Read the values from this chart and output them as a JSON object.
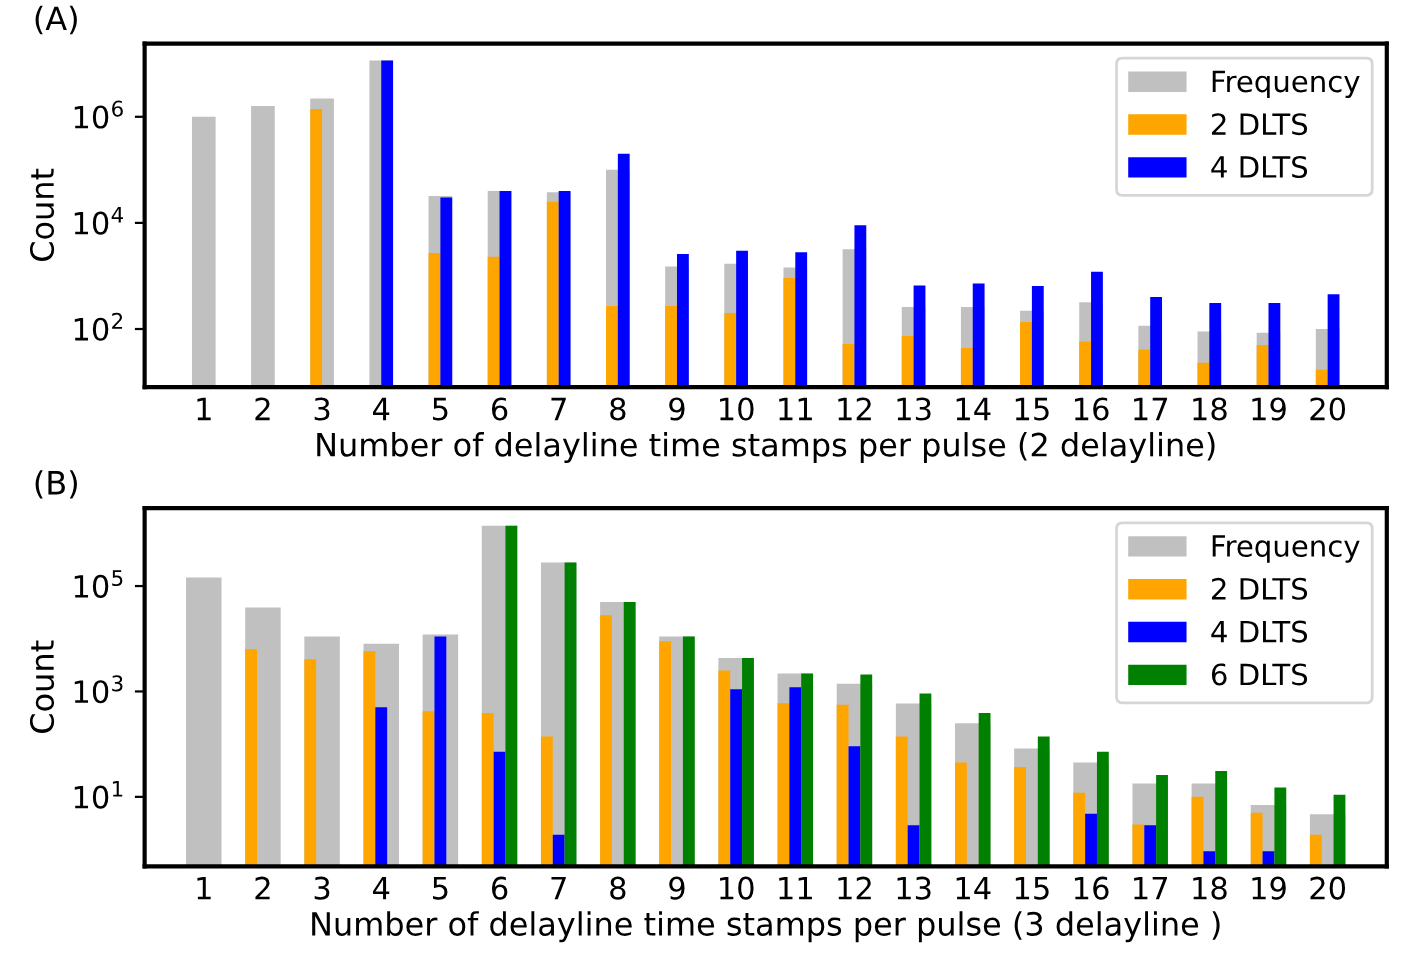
{
  "chart_data": [
    {
      "type": "bar",
      "title": "(A)",
      "xlabel": "Number of delayline time stamps per pulse (2 delayline)",
      "ylabel": "Count",
      "categories": [
        "1",
        "2",
        "3",
        "4",
        "5",
        "6",
        "7",
        "8",
        "9",
        "10",
        "11",
        "12",
        "13",
        "14",
        "15",
        "16",
        "17",
        "18",
        "19",
        "20"
      ],
      "series": [
        {
          "name": "Frequency",
          "color": "#c0c0c0",
          "values": [
            1000000,
            1600000,
            2200000,
            11500000,
            32000,
            40000,
            38000,
            100000,
            1500,
            1700,
            1450,
            3200,
            260,
            260,
            220,
            320,
            115,
            90,
            85,
            100
          ]
        },
        {
          "name": "2 DLTS",
          "color": "#ffa500",
          "values": [
            null,
            null,
            1400000,
            null,
            2700,
            2300,
            25000,
            270,
            270,
            200,
            910,
            52,
            74,
            44,
            135,
            58,
            41,
            23,
            50,
            17
          ]
        },
        {
          "name": "4 DLTS",
          "color": "#0000ff",
          "values": [
            null,
            null,
            null,
            11500000,
            30000,
            40000,
            40000,
            200000,
            2600,
            3000,
            2800,
            9000,
            660,
            720,
            650,
            1200,
            400,
            310,
            310,
            450
          ]
        }
      ],
      "log": "y",
      "ylim": [
        8,
        24000000
      ],
      "yticks": [
        {
          "value": 100,
          "label": "10$^{2}$"
        },
        {
          "value": 10000,
          "label": "10$^{4}$"
        },
        {
          "value": 1000000,
          "label": "10$^{6}$"
        }
      ],
      "legend": "top right",
      "grid": false
    },
    {
      "type": "bar",
      "title": "(B)",
      "xlabel": "Number of delayline time stamps per pulse (3 delayline )",
      "ylabel": "Count",
      "categories": [
        "1",
        "2",
        "3",
        "4",
        "5",
        "6",
        "7",
        "8",
        "9",
        "10",
        "11",
        "12",
        "13",
        "14",
        "15",
        "16",
        "17",
        "18",
        "19",
        "20"
      ],
      "series": [
        {
          "name": "Frequency",
          "color": "#c0c0c0",
          "values": [
            145000,
            39000,
            11000,
            8000,
            12000,
            1400000,
            280000,
            50000,
            11000,
            4300,
            2200,
            1400,
            590,
            250,
            83,
            45,
            18,
            18,
            7,
            4.7
          ]
        },
        {
          "name": "2 DLTS",
          "color": "#ffa500",
          "values": [
            null,
            6300,
            4100,
            5800,
            420,
            390,
            140,
            28000,
            9000,
            2500,
            600,
            560,
            140,
            45,
            37,
            12,
            3,
            10,
            5,
            1.9
          ]
        },
        {
          "name": "4 DLTS",
          "color": "#0000ff",
          "values": [
            null,
            null,
            null,
            500,
            11000,
            72,
            1.9,
            null,
            null,
            1100,
            1200,
            91,
            2.9,
            null,
            null,
            4.8,
            2.9,
            0.93,
            0.93,
            null
          ]
        },
        {
          "name": "6 DLTS",
          "color": "#008000",
          "values": [
            null,
            null,
            null,
            null,
            null,
            1400000,
            280000,
            50000,
            11000,
            4300,
            2200,
            2100,
            910,
            390,
            140,
            72,
            26,
            31,
            15,
            11
          ]
        }
      ],
      "log": "y",
      "ylim": [
        0.48,
        3000000
      ],
      "yticks": [
        {
          "value": 10,
          "label": "10$^{1}$"
        },
        {
          "value": 1000,
          "label": "10$^{3}$"
        },
        {
          "value": 100000,
          "label": "10$^{5}$"
        }
      ],
      "legend": "top right",
      "grid": false
    }
  ]
}
